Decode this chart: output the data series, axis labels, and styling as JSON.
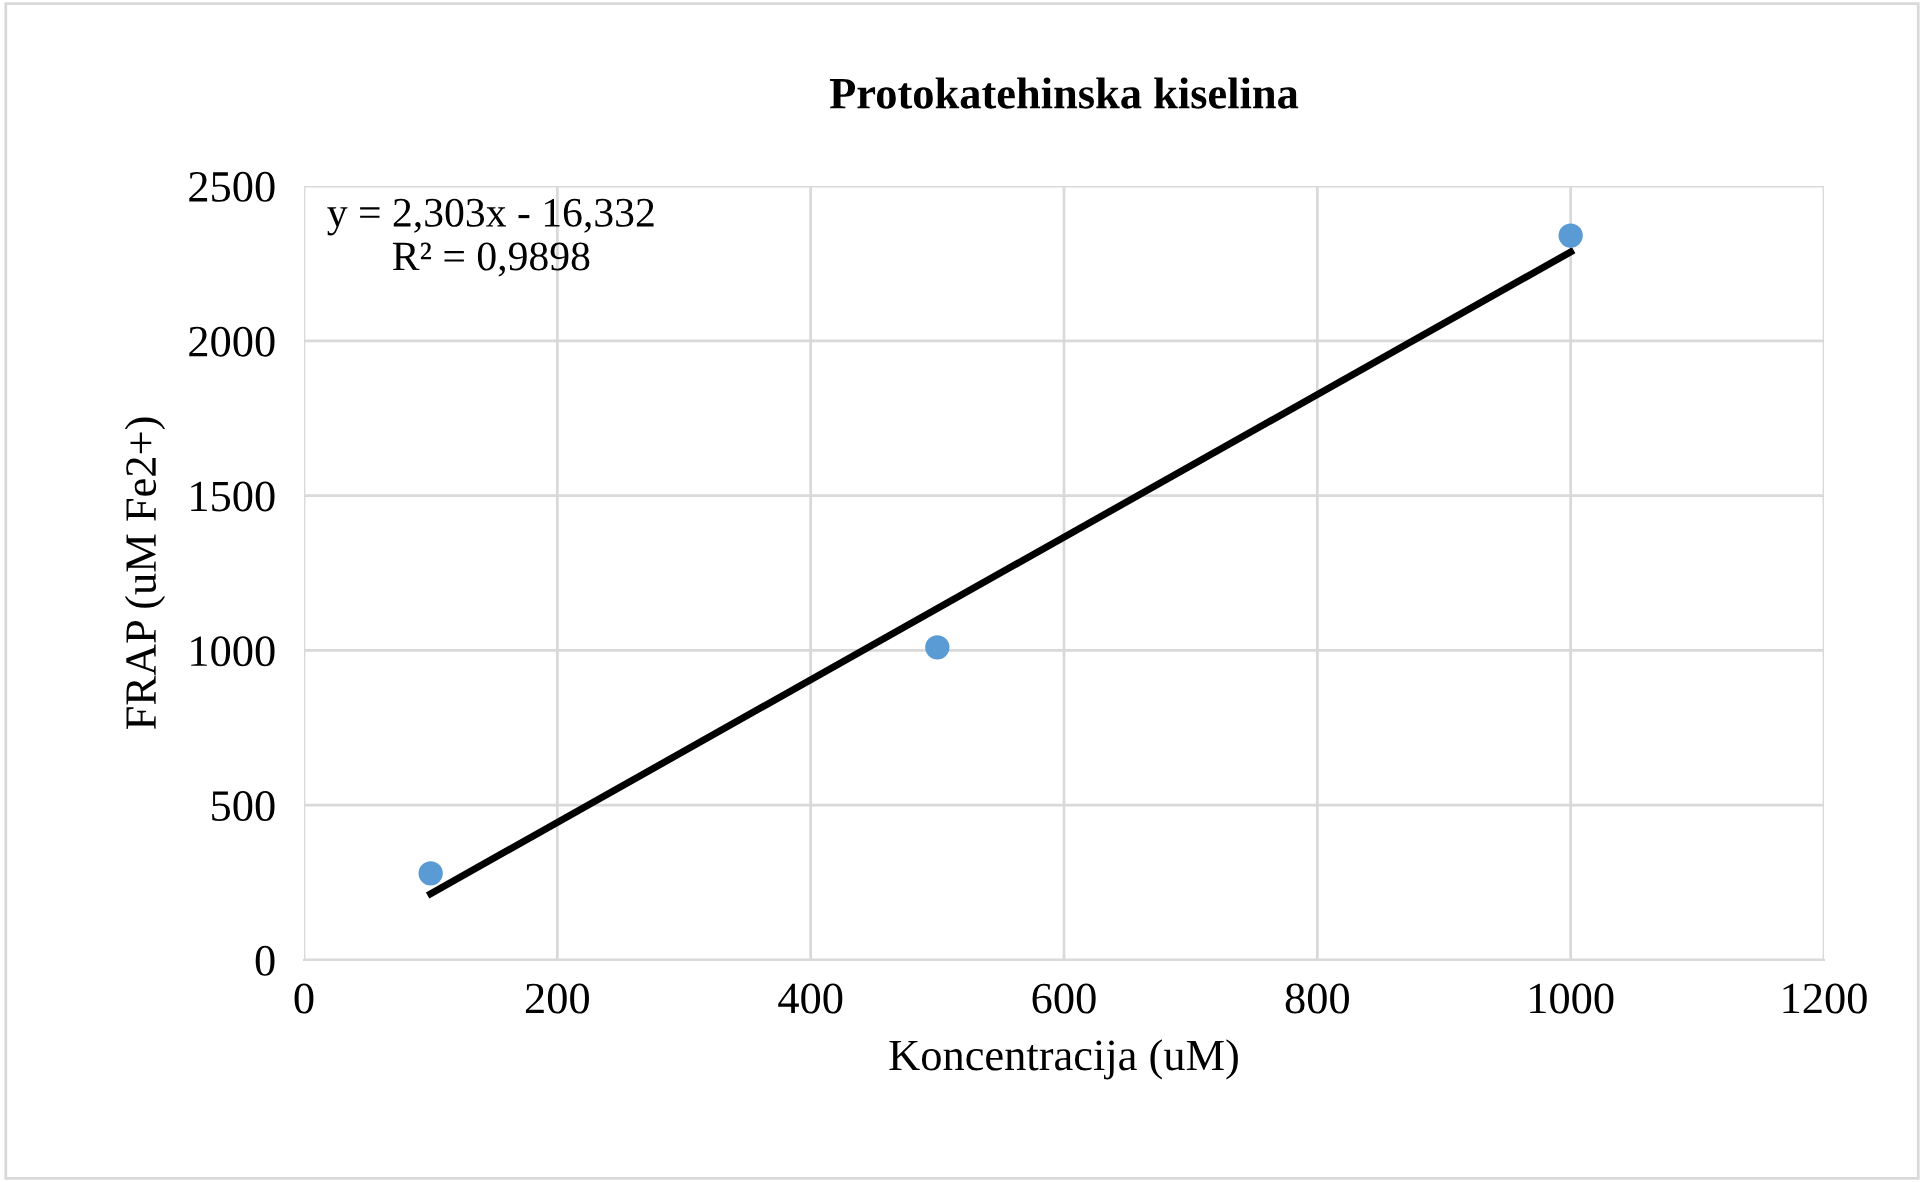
{
  "chart_data": {
    "type": "scatter",
    "title": "Protokatehinska kiselina",
    "xlabel": "Koncentracija (uM)",
    "ylabel": "FRAP (uM Fe2+)",
    "series": [
      {
        "color": "#5b9bd5",
        "x": [
          100,
          500,
          1000
        ],
        "values": [
          280,
          1010,
          2340
        ],
        "marker": "circle"
      },
      {
        "type": "line",
        "color": "#000000",
        "x": [
          100,
          1000
        ],
        "values": [
          214,
          2287
        ],
        "marker": "none",
        "line_style": "solid"
      }
    ],
    "annotations": [
      "y = 2,303x - 16,332\nR² = 0,9898"
    ],
    "xlim": [
      0,
      1200
    ],
    "xticks": [
      0,
      200,
      400,
      600,
      800,
      1000,
      1200
    ],
    "ylim": [
      0,
      2500
    ],
    "yticks": [
      0,
      500,
      1000,
      1500,
      2000,
      2500
    ],
    "grid": true,
    "legend": false
  }
}
